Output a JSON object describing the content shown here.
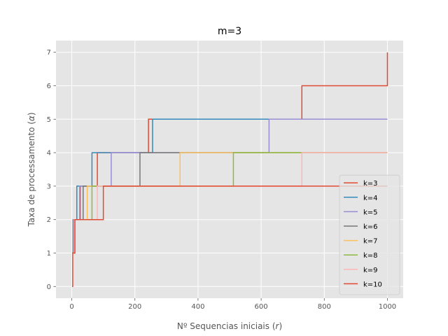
{
  "chart_data": {
    "type": "line",
    "step": "post",
    "title": "m=3",
    "xlabel": "Nº Sequencias iniciais (r)",
    "ylabel": "Taxa de processamento (α)",
    "xlim": [
      -50,
      1050
    ],
    "ylim": [
      -0.35,
      7.35
    ],
    "xticks": [
      0,
      200,
      400,
      600,
      800,
      1000
    ],
    "xtick_labels": [
      "0",
      "200",
      "400",
      "600",
      "800",
      "1000"
    ],
    "yticks": [
      0,
      1,
      2,
      3,
      4,
      5,
      6,
      7
    ],
    "ytick_labels": [
      "0",
      "1",
      "2",
      "3",
      "4",
      "5",
      "6",
      "7"
    ],
    "grid": true,
    "legend_position": "lower-right",
    "series": [
      {
        "name": "k=3",
        "color": "#E24A33",
        "x": [
          1,
          3,
          9,
          27,
          81,
          243,
          729,
          1000
        ],
        "y": [
          0,
          1,
          2,
          3,
          4,
          5,
          6,
          7
        ]
      },
      {
        "name": "k=4",
        "color": "#348ABD",
        "x": [
          1,
          4,
          16,
          64,
          256,
          1000
        ],
        "y": [
          1,
          2,
          3,
          4,
          5,
          5
        ]
      },
      {
        "name": "k=5",
        "color": "#988ED5",
        "x": [
          1,
          5,
          25,
          125,
          625,
          1000
        ],
        "y": [
          1,
          2,
          3,
          4,
          5,
          5
        ]
      },
      {
        "name": "k=6",
        "color": "#777777",
        "x": [
          1,
          6,
          36,
          216,
          1000
        ],
        "y": [
          1,
          2,
          3,
          4,
          4
        ]
      },
      {
        "name": "k=7",
        "color": "#FBC15E",
        "x": [
          1,
          7,
          49,
          343,
          1000
        ],
        "y": [
          1,
          2,
          3,
          4,
          4
        ]
      },
      {
        "name": "k=8",
        "color": "#8EBA42",
        "x": [
          1,
          8,
          64,
          512,
          1000
        ],
        "y": [
          1,
          2,
          3,
          4,
          4
        ]
      },
      {
        "name": "k=9",
        "color": "#FFB5B8",
        "x": [
          1,
          9,
          81,
          729,
          1000
        ],
        "y": [
          1,
          2,
          3,
          4,
          4
        ]
      },
      {
        "name": "k=10",
        "color": "#E24A33",
        "x": [
          1,
          10,
          100,
          1000
        ],
        "y": [
          1,
          2,
          3,
          3
        ]
      }
    ]
  }
}
